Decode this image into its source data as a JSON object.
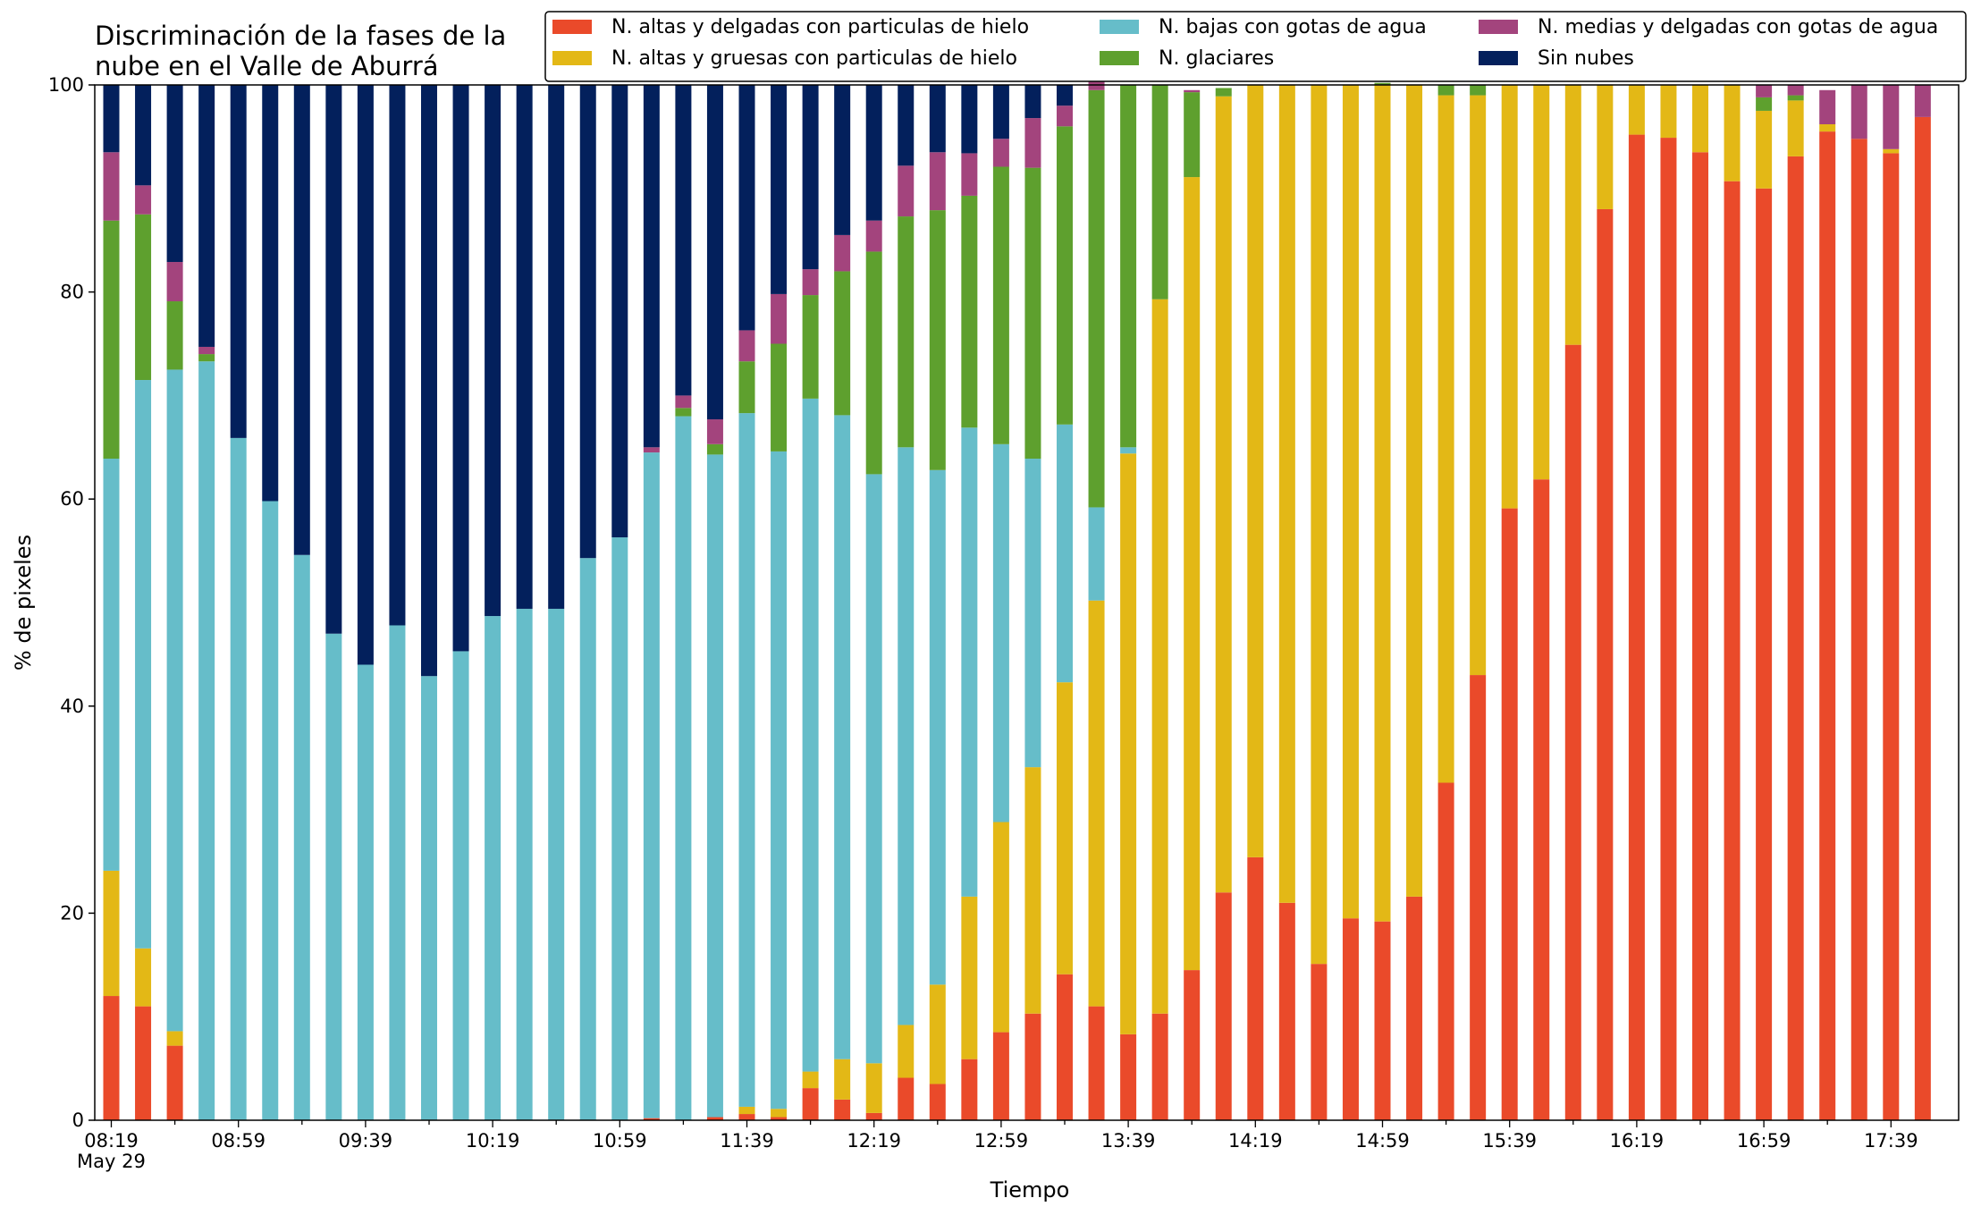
{
  "chart_data": {
    "type": "bar",
    "stacked": true,
    "title_lines": [
      "Discriminación de la fases de la",
      "nube en el Valle de Aburrá"
    ],
    "xlabel": "Tiempo",
    "ylabel": "% de pixeles",
    "ylim": [
      0,
      100
    ],
    "yticks": [
      0,
      20,
      40,
      60,
      80,
      100
    ],
    "x_tick_labels": [
      "08:19",
      "08:59",
      "09:39",
      "10:19",
      "10:59",
      "11:39",
      "12:19",
      "12:59",
      "13:39",
      "14:19",
      "14:59",
      "15:39",
      "16:19",
      "16:59",
      "17:39"
    ],
    "x_date_label": "May 29",
    "legend_position": "top-right",
    "grid": false,
    "time_start": "08:19",
    "time_step_minutes": 10,
    "series": [
      {
        "name": "N. altas y delgadas con particulas de hielo",
        "color": "#ea4a2a",
        "values": [
          12,
          11,
          7.2,
          0,
          0,
          0,
          0,
          0,
          0,
          0,
          0,
          0,
          0,
          0,
          0,
          0,
          0,
          0.2,
          0,
          0.3,
          0.6,
          0.3,
          3.1,
          2,
          0.7,
          4.1,
          3.5,
          5.9,
          8.5,
          10.3,
          14.1,
          11,
          8.3,
          10.3,
          14.5,
          22,
          25.4,
          21,
          15.1,
          19.5,
          19.2,
          21.6,
          32.6,
          43,
          59.1,
          61.9,
          74.9,
          88,
          95.2,
          94.9,
          93.5,
          90.7,
          90,
          93.1,
          95.5,
          94.8,
          93.4,
          96.9
        ]
      },
      {
        "name": "N. altas y gruesas con particulas de hielo",
        "color": "#e3b816",
        "values": [
          12.1,
          5.6,
          1.4,
          0,
          0,
          0,
          0,
          0,
          0,
          0,
          0,
          0,
          0,
          0,
          0,
          0,
          0,
          0,
          0,
          0,
          0.7,
          0.8,
          1.6,
          3.9,
          4.8,
          5.1,
          9.6,
          15.7,
          20.3,
          23.8,
          28.2,
          39.2,
          56.1,
          69,
          76.6,
          76.9,
          74.6,
          79,
          84.9,
          80.5,
          80.8,
          78.4,
          66.4,
          56,
          40.9,
          38.1,
          25.1,
          12,
          4.8,
          5.1,
          6.5,
          9.3,
          7.5,
          5.4,
          0.7,
          0,
          0.4,
          0
        ]
      },
      {
        "name": "N. bajas con gotas de agua",
        "color": "#66bdc9",
        "values": [
          39.8,
          54.9,
          63.9,
          73.3,
          65.9,
          59.8,
          54.6,
          47,
          44,
          47.8,
          42.9,
          45.3,
          48.7,
          49.4,
          49.4,
          54.3,
          56.3,
          64.3,
          68,
          64,
          67,
          63.5,
          65,
          62.2,
          56.9,
          55.8,
          49.7,
          45.3,
          36.5,
          29.8,
          24.9,
          9,
          0.6,
          0,
          0,
          0,
          0,
          0,
          0,
          0,
          0,
          0,
          0,
          0,
          0,
          0,
          0,
          0,
          0,
          0,
          0,
          0,
          0,
          0,
          0,
          0,
          0,
          0
        ]
      },
      {
        "name": "N. glaciares",
        "color": "#5ea02e",
        "values": [
          23,
          16,
          6.6,
          0.7,
          0,
          0,
          0,
          0,
          0,
          0,
          0,
          0,
          0,
          0,
          0,
          0,
          0,
          0,
          0.8,
          1,
          5,
          10.4,
          10,
          13.9,
          21.5,
          22.3,
          25.1,
          22.4,
          26.8,
          28.1,
          28.8,
          40.3,
          35,
          20.7,
          8.2,
          0.8,
          0,
          0,
          0,
          0,
          0.2,
          0,
          1,
          1,
          0,
          0,
          0,
          0,
          0,
          0,
          0,
          0,
          1.3,
          0.5,
          0,
          0,
          0,
          0
        ]
      },
      {
        "name": "N. medias y delgadas con gotas de agua",
        "color": "#a3447d",
        "values": [
          6.6,
          2.8,
          3.8,
          0.7,
          0,
          0,
          0,
          0,
          0,
          0,
          0,
          0,
          0,
          0,
          0,
          0,
          0,
          0.5,
          1.2,
          2.4,
          3,
          4.8,
          2.5,
          3.5,
          3,
          4.9,
          5.6,
          4.1,
          2.7,
          4.8,
          2,
          0.8,
          0,
          0,
          0.2,
          0,
          0,
          0,
          0,
          0,
          0,
          0,
          0,
          0,
          0,
          0,
          0,
          0,
          0,
          0,
          0,
          0,
          1.2,
          1,
          3.3,
          5.2,
          6.2,
          3.1
        ]
      },
      {
        "name": "Sin nubes",
        "color": "#03205c",
        "values": [
          6.5,
          9.7,
          17.1,
          25.3,
          34.1,
          40.2,
          45.4,
          53,
          56,
          52.2,
          57.1,
          54.7,
          51.3,
          50.6,
          50.6,
          45.7,
          43.7,
          35,
          30,
          32.3,
          23.7,
          20.2,
          17.8,
          14.5,
          13.1,
          7.8,
          6.5,
          6.6,
          5.2,
          3.2,
          2,
          0,
          0,
          0,
          0,
          0,
          0,
          0,
          0,
          0,
          0,
          0,
          0,
          0,
          0,
          0,
          0,
          0,
          0,
          0,
          0,
          0,
          0,
          0,
          0,
          0,
          0,
          0
        ]
      }
    ]
  }
}
